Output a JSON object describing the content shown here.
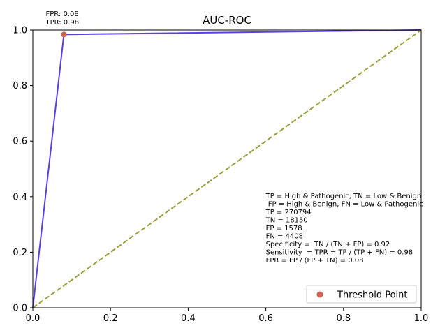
{
  "chart_data": {
    "type": "line",
    "title": "AUC-ROC",
    "xlabel": "",
    "ylabel": "",
    "xlim": [
      0.0,
      1.0
    ],
    "ylim": [
      0.0,
      1.0
    ],
    "grid": false,
    "x_ticks": [
      "0.0",
      "0.2",
      "0.4",
      "0.6",
      "0.8",
      "1.0"
    ],
    "y_ticks": [
      "0.0",
      "0.2",
      "0.4",
      "0.6",
      "0.8",
      "1.0"
    ],
    "series": [
      {
        "kind": "line",
        "color": "#5b3fe6",
        "points": [
          [
            0.0,
            0.0
          ],
          [
            0.08,
            0.984
          ],
          [
            1.0,
            1.0
          ]
        ]
      },
      {
        "kind": "dashed-line",
        "color": "#9aa040",
        "points": [
          [
            0.0,
            0.0
          ],
          [
            1.0,
            1.0
          ]
        ]
      }
    ],
    "threshold_point": {
      "name": "Threshold Point",
      "color": "#d0604e",
      "x": 0.08,
      "y": 0.984,
      "label_lines": [
        "FPR: 0.08",
        "TPR: 0.98"
      ]
    },
    "annotation_lines": [
      "TP = High & Pathogenic, TN = Low & Benign",
      " FP = High & Benign, FN = Low & Pathogenic",
      "TP = 270794",
      "TN = 18150",
      "FP = 1578",
      "FN = 4408",
      "Specificity =  TN / (TN + FP) = 0.92",
      "Sensitivity  = TPR = TP / (TP + FN) = 0.98",
      "FPR = FP / (FP + TN) = 0.08"
    ],
    "annotation_position": {
      "x": 0.6,
      "y": 0.385
    },
    "legend": {
      "placement": "lower-right",
      "entries": [
        "Threshold Point"
      ]
    }
  }
}
